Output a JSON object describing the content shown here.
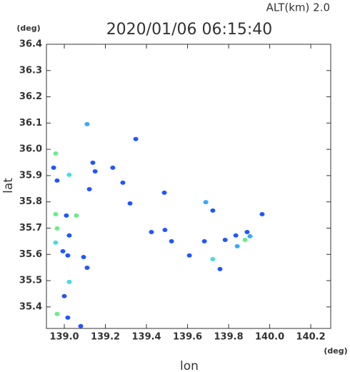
{
  "chart_data": {
    "type": "scatter",
    "title": "2020/01/06 06:15:40",
    "subtitle": "ALT(km) 2.0",
    "y_unit": "(deg)",
    "x_unit": "(deg)",
    "y_label": "lat",
    "x_label": "lon",
    "xlim": [
      138.913,
      140.297
    ],
    "ylim": [
      35.318,
      36.4
    ],
    "xticks": [
      {
        "value": 139.0,
        "label": "139.0"
      },
      139.2,
      139.4,
      139.6,
      139.8,
      {
        "value": 140.0,
        "label": "140.0"
      },
      140.2
    ],
    "yticks": [
      36.4,
      36.3,
      36.2,
      36.1,
      {
        "value": 36.0,
        "label": "36.0"
      },
      35.9,
      35.8,
      35.7,
      35.6,
      35.5,
      35.4
    ],
    "x": [
      139.111,
      138.958,
      138.948,
      139.024,
      138.965,
      139.139,
      139.15,
      139.236,
      139.285,
      139.348,
      139.32,
      139.487,
      138.958,
      139.01,
      139.059,
      138.965,
      139.024,
      138.958,
      138.993,
      139.017,
      139.094,
      139.111,
      139.024,
      139.0,
      139.017,
      138.965,
      139.08,
      139.122,
      139.424,
      139.49,
      139.522,
      139.609,
      139.689,
      139.723,
      139.682,
      139.723,
      139.758,
      139.783,
      139.835,
      139.842,
      139.89,
      139.88,
      139.963,
      139.904
    ],
    "y": [
      36.096,
      35.984,
      35.93,
      35.903,
      35.881,
      35.949,
      35.916,
      35.93,
      35.873,
      36.039,
      35.794,
      35.835,
      35.753,
      35.748,
      35.748,
      35.699,
      35.672,
      35.645,
      35.612,
      35.596,
      35.59,
      35.549,
      35.495,
      35.441,
      35.359,
      35.373,
      35.327,
      35.848,
      35.685,
      35.693,
      35.65,
      35.596,
      35.799,
      35.767,
      35.65,
      35.582,
      35.544,
      35.655,
      35.672,
      35.631,
      35.685,
      35.655,
      35.753,
      35.669
    ],
    "colors": [
      "#33aaff",
      "#66ee88",
      "#2255ff",
      "#44dddd",
      "#2255ff",
      "#2255ff",
      "#2255ff",
      "#2255ff",
      "#2255ff",
      "#2255ff",
      "#2255ff",
      "#2255ff",
      "#66ee88",
      "#2255ff",
      "#66ee88",
      "#66ee88",
      "#2255ff",
      "#44dddd",
      "#2255ff",
      "#2255ff",
      "#2255ff",
      "#2255ff",
      "#44dddd",
      "#2255ff",
      "#2255ff",
      "#66ee88",
      "#2255ff",
      "#2255ff",
      "#2255ff",
      "#2255ff",
      "#2255ff",
      "#2255ff",
      "#33aaff",
      "#2255ff",
      "#2255ff",
      "#44dddd",
      "#2255ff",
      "#2255ff",
      "#2255ff",
      "#33aaff",
      "#2255ff",
      "#66ee88",
      "#2255ff",
      "#33aaff"
    ]
  }
}
